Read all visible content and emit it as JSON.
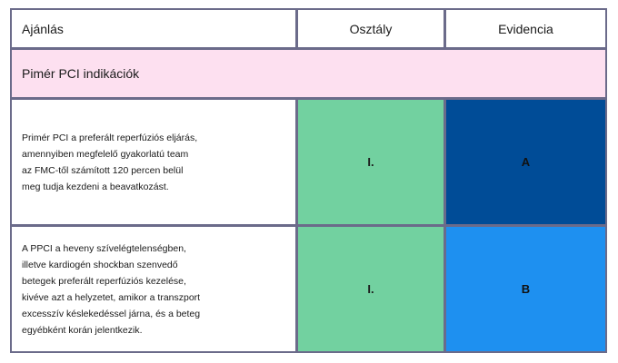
{
  "table": {
    "headers": {
      "recommendation": "Ajánlás",
      "class": "Osztály",
      "evidence": "Evidencia"
    },
    "section_title": "Pimér PCI indikációk",
    "rows": [
      {
        "lines": [
          "Primér PCI a preferált reperfúziós eljárás,",
          "amennyiben megfelelő gyakorlatú team",
          "az FMC-től számított 120 percen belül",
          "meg tudja kezdeni a beavatkozást."
        ],
        "class": "I.",
        "evidence": "A"
      },
      {
        "lines": [
          "A PPCI a heveny szívelégtelenségben,",
          "illetve kardiogén shockban szenvedő",
          "betegek preferált reperfúziós kezelése,",
          "kivéve azt a helyzetet, amikor a transzport",
          "excesszív késlekedéssel járna, és a beteg",
          "egyébként korán jelentkezik."
        ],
        "class": "I.",
        "evidence": "B"
      }
    ],
    "colors": {
      "border": "#6b6b8a",
      "section_bg": "#fde0f0",
      "class_bg": "#72d1a0",
      "evidence_a_bg": "#004c97",
      "evidence_b_bg": "#1e90f0"
    }
  }
}
